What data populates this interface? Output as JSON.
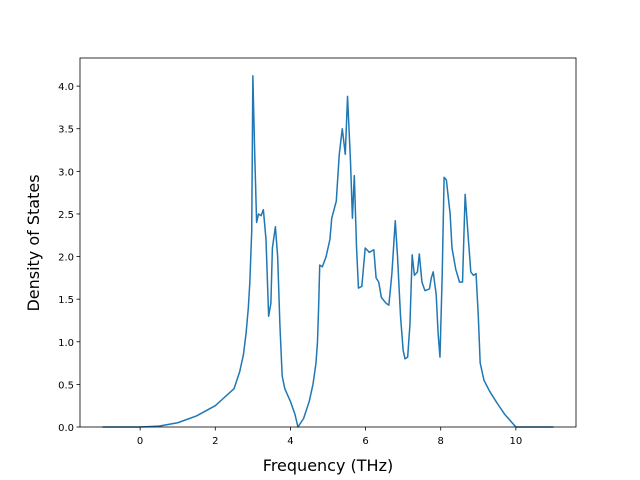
{
  "chart_data": {
    "type": "line",
    "xlabel": "Frequency (THz)",
    "ylabel": "Density of States",
    "x": [
      -1,
      -0.5,
      0,
      0.5,
      1,
      1.5,
      2,
      2.2,
      2.5,
      2.65,
      2.75,
      2.82,
      2.88,
      2.92,
      2.97,
      3.0,
      3.05,
      3.1,
      3.15,
      3.22,
      3.28,
      3.35,
      3.42,
      3.48,
      3.52,
      3.6,
      3.66,
      3.72,
      3.78,
      3.85,
      4.0,
      4.12,
      4.2,
      4.35,
      4.5,
      4.6,
      4.68,
      4.72,
      4.75,
      4.78,
      4.85,
      4.95,
      5.05,
      5.1,
      5.22,
      5.3,
      5.38,
      5.46,
      5.52,
      5.6,
      5.65,
      5.7,
      5.76,
      5.81,
      5.9,
      5.99,
      6.1,
      6.22,
      6.28,
      6.35,
      6.42,
      6.55,
      6.62,
      6.7,
      6.79,
      6.85,
      6.93,
      7.0,
      7.05,
      7.12,
      7.18,
      7.24,
      7.3,
      7.38,
      7.43,
      7.5,
      7.58,
      7.7,
      7.75,
      7.8,
      7.88,
      7.93,
      7.98,
      8.04,
      8.09,
      8.15,
      8.25,
      8.3,
      8.4,
      8.5,
      8.58,
      8.65,
      8.72,
      8.8,
      8.87,
      8.94,
      9.0,
      9.05,
      9.15,
      9.3,
      9.5,
      9.7,
      9.9,
      10.0,
      10.5,
      11
    ],
    "values": [
      0,
      0,
      0,
      0.01,
      0.05,
      0.13,
      0.25,
      0.33,
      0.45,
      0.65,
      0.85,
      1.1,
      1.4,
      1.7,
      2.3,
      4.12,
      3.2,
      2.4,
      2.5,
      2.48,
      2.55,
      2.2,
      1.3,
      1.45,
      2.1,
      2.35,
      2.0,
      1.2,
      0.6,
      0.45,
      0.3,
      0.15,
      0.0,
      0.1,
      0.3,
      0.5,
      0.75,
      1.0,
      1.4,
      1.9,
      1.88,
      2.0,
      2.2,
      2.45,
      2.65,
      3.2,
      3.5,
      3.2,
      3.88,
      3.1,
      2.45,
      2.95,
      2.1,
      1.63,
      1.65,
      2.1,
      2.05,
      2.08,
      1.75,
      1.7,
      1.52,
      1.45,
      1.43,
      1.8,
      2.42,
      2.0,
      1.3,
      0.9,
      0.8,
      0.82,
      1.2,
      2.02,
      1.78,
      1.82,
      2.03,
      1.7,
      1.6,
      1.62,
      1.75,
      1.82,
      1.55,
      1.1,
      0.82,
      1.8,
      2.93,
      2.9,
      2.5,
      2.1,
      1.85,
      1.7,
      1.7,
      2.73,
      2.3,
      1.82,
      1.78,
      1.8,
      1.3,
      0.75,
      0.55,
      0.42,
      0.28,
      0.15,
      0.05,
      0.0,
      0.0,
      0.0
    ],
    "color": "#1f77b4",
    "xlim": [
      -1.6,
      11.6
    ],
    "xticks": [
      0,
      2,
      4,
      6,
      8,
      10
    ],
    "ylim": [
      0,
      4.33
    ],
    "yticks": [
      {
        "value": 0,
        "label": "0.0"
      },
      {
        "value": 0.5,
        "label": "0.5"
      },
      {
        "value": 1,
        "label": "1.0"
      },
      {
        "value": 1.5,
        "label": "1.5"
      },
      {
        "value": 2,
        "label": "2.0"
      },
      {
        "value": 2.5,
        "label": "2.5"
      },
      {
        "value": 3,
        "label": "3.0"
      },
      {
        "value": 3.5,
        "label": "3.5"
      },
      {
        "value": 4,
        "label": "4.0"
      }
    ]
  }
}
